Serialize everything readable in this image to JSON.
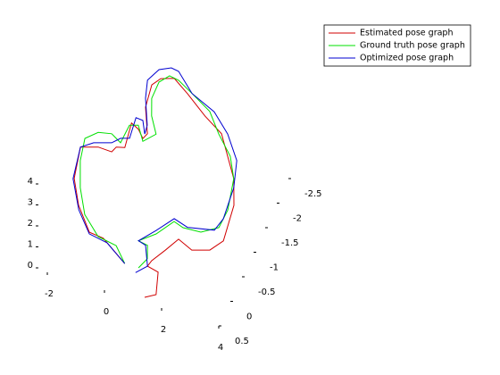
{
  "chart_data": {
    "type": "line3d",
    "xlim": [
      -2.5,
      4
    ],
    "ylim": [
      -2.5,
      0.5
    ],
    "zlim": [
      0,
      4
    ],
    "xticks": [
      -2,
      0,
      2,
      4
    ],
    "yticks": [
      -2.5,
      -2,
      -1.5,
      -1,
      -0.5,
      0,
      0.5
    ],
    "zticks": [
      0,
      1,
      2,
      3,
      4
    ],
    "legend": "top-right",
    "series": [
      {
        "name": "Estimated pose graph",
        "color": "#d00000",
        "x": [
          1.48,
          1.79,
          1.74,
          1.57,
          1.62,
          1.88,
          2.13,
          2.69,
          3.24,
          3.52,
          3.33,
          2.94,
          1.92,
          1.17,
          0.31,
          -0.32,
          -0.73,
          -0.91,
          -0.78,
          -0.34,
          -0.41,
          -0.68,
          -0.98,
          -0.83,
          -1.1,
          -1.17,
          -1.65,
          -2.19,
          -1.93,
          -1.41,
          -0.69,
          -0.18,
          0.84
        ],
        "y": [
          0.59,
          0.48,
          0.33,
          0.58,
          0.46,
          0.2,
          -0.07,
          0.05,
          -0.05,
          -0.29,
          -0.98,
          -1.45,
          -2.18,
          -2.4,
          -2.7,
          -2.9,
          -2.82,
          -2.66,
          -2.23,
          -1.77,
          -1.66,
          -1.8,
          -1.87,
          -1.4,
          -1.36,
          -1.25,
          -1.26,
          -1.16,
          -0.57,
          -0.12,
          0.3,
          0.33,
          0.66
        ],
        "z": [
          0.5,
          0.5,
          1.2,
          2,
          2,
          2,
          2,
          2,
          2,
          2,
          2,
          2,
          2,
          2,
          2,
          2,
          2,
          2,
          2,
          2,
          2,
          2,
          2,
          2,
          2,
          2,
          2,
          2,
          2,
          2,
          2,
          2,
          2
        ]
      },
      {
        "name": "Ground truth pose graph",
        "color": "#00e000",
        "x": [
          1.32,
          1.46,
          1.27,
          0.93,
          1.37,
          1.74,
          2.1,
          2.71,
          3.19,
          3.21,
          2.94,
          2.51,
          1.84,
          1.24,
          0.44,
          -0.16,
          -0.5,
          -0.73,
          -0.72,
          -0.47,
          -0.07,
          -0.37,
          -0.74,
          -1.01,
          -1.03,
          -1.43,
          -1.86,
          -2.18,
          -2.0,
          -1.61,
          -1.09,
          -0.36,
          0.32,
          0.84
        ],
        "y": [
          0.66,
          0.45,
          0.21,
          0.18,
          -0.04,
          -0.36,
          -0.3,
          -0.32,
          -0.5,
          -0.86,
          -1.45,
          -1.83,
          -2.16,
          -2.51,
          -2.73,
          -2.89,
          -2.92,
          -2.75,
          -2.42,
          -2.11,
          -1.81,
          -1.61,
          -1.87,
          -1.82,
          -1.46,
          -1.57,
          -1.52,
          -1.34,
          -0.92,
          -0.44,
          0.01,
          0.33,
          0.39,
          0.66
        ],
        "z": [
          2,
          2,
          2,
          2,
          2,
          2,
          2,
          2,
          2,
          2,
          2,
          2,
          2,
          2,
          2,
          2,
          2,
          2,
          2,
          2,
          2,
          2,
          2,
          2,
          2,
          2,
          2,
          2,
          2,
          2,
          2,
          2,
          2,
          2
        ]
      },
      {
        "name": "Optimized pose graph",
        "color": "#0000d0",
        "x": [
          1.3,
          1.57,
          1.21,
          0.93,
          1.32,
          1.7,
          2.23,
          3.09,
          3.2,
          3.07,
          2.77,
          2.11,
          1.38,
          0.44,
          -0.29,
          -0.56,
          -0.91,
          -1.11,
          -0.91,
          -0.47,
          -0.42,
          -0.67,
          -0.92,
          -0.82,
          -1.09,
          -1.3,
          -1.85,
          -2.19,
          -1.96,
          -1.34,
          -0.67,
          0.0,
          0.84
        ],
        "y": [
          0.76,
          0.58,
          0.22,
          0.18,
          -0.1,
          -0.41,
          -0.33,
          -0.43,
          -0.68,
          -1.29,
          -1.79,
          -2.21,
          -2.53,
          -2.73,
          -3.05,
          -3.07,
          -2.97,
          -2.72,
          -2.39,
          -1.92,
          -1.75,
          -1.98,
          -1.99,
          -1.59,
          -1.54,
          -1.41,
          -1.31,
          -1.16,
          -0.56,
          -0.04,
          0.33,
          0.39,
          0.66
        ],
        "z": [
          2,
          2,
          2,
          2,
          2,
          2,
          2,
          2,
          2,
          2,
          2,
          2,
          2,
          2,
          2,
          2,
          2,
          2,
          2,
          2,
          2,
          2,
          2,
          2,
          2,
          2,
          2,
          2,
          2,
          2,
          2,
          2,
          2
        ]
      }
    ]
  }
}
